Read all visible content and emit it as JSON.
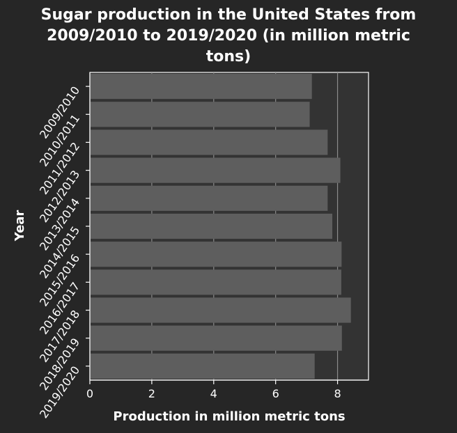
{
  "chart_data": {
    "type": "bar",
    "orientation": "horizontal",
    "title_lines": [
      "Sugar production in the United States from",
      "2009/2010 to 2019/2020 (in million metric",
      "tons)"
    ],
    "xlabel": "Production in million metric tons",
    "ylabel": "Year",
    "categories": [
      "2009/2010",
      "2010/2011",
      "2011/2012",
      "2012/2013",
      "2013/2014",
      "2014/2015",
      "2015/2016",
      "2016/2017",
      "2017/2018",
      "2018/2019",
      "2019/2020"
    ],
    "values": [
      7.17,
      7.1,
      7.68,
      8.09,
      7.68,
      7.83,
      8.13,
      8.12,
      8.43,
      8.14,
      7.26
    ],
    "xlim": [
      0,
      9
    ],
    "xticks": [
      0,
      2,
      4,
      6,
      8
    ],
    "xtick_labels": [
      "0",
      "2",
      "4",
      "6",
      "8"
    ],
    "grid": "vertical",
    "legend": "none",
    "colors": {
      "background": "#262626",
      "plot_background": "#333333",
      "bar": "#5e5e5e",
      "grid": "#8c8c8c",
      "axis": "#ffffff",
      "text": "#ffffff"
    }
  }
}
